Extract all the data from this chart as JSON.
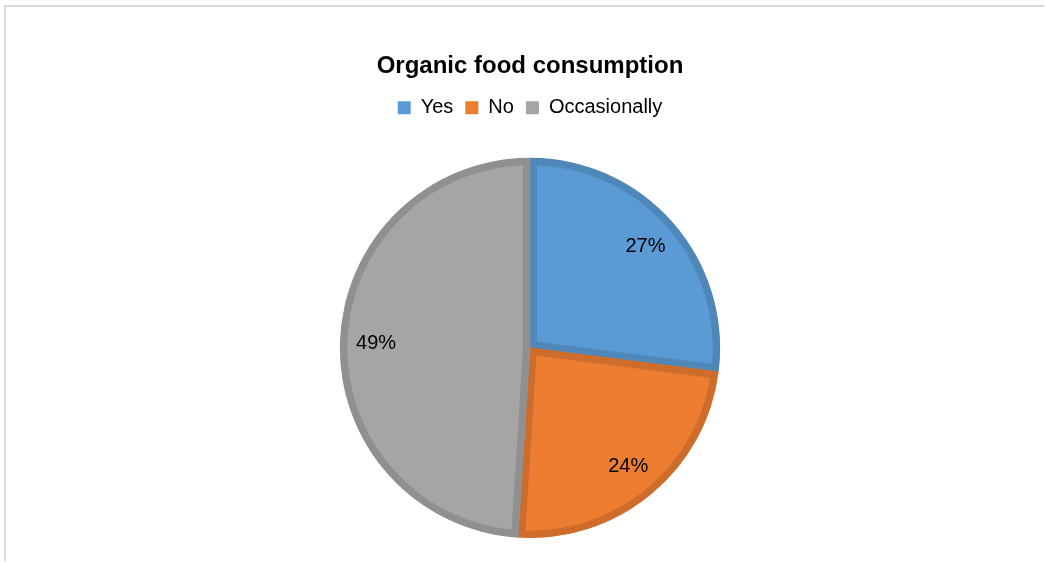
{
  "chart_data": {
    "type": "pie",
    "title": "Organic food consumption",
    "categories": [
      "Yes",
      "No",
      "Occasionally"
    ],
    "values": [
      27,
      24,
      49
    ],
    "colors": [
      "#5b9bd5",
      "#ed7d31",
      "#a5a5a5"
    ],
    "value_labels": [
      "27%",
      "24%",
      "49%"
    ],
    "legend": "top"
  }
}
